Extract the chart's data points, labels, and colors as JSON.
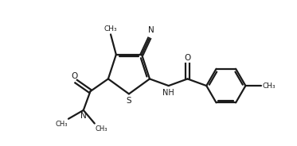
{
  "bg_color": "#ffffff",
  "line_color": "#1a1a1a",
  "line_width": 1.6,
  "figsize": [
    3.73,
    1.84
  ],
  "dpi": 100,
  "xlim": [
    0,
    10
  ],
  "ylim": [
    0,
    5.2
  ]
}
